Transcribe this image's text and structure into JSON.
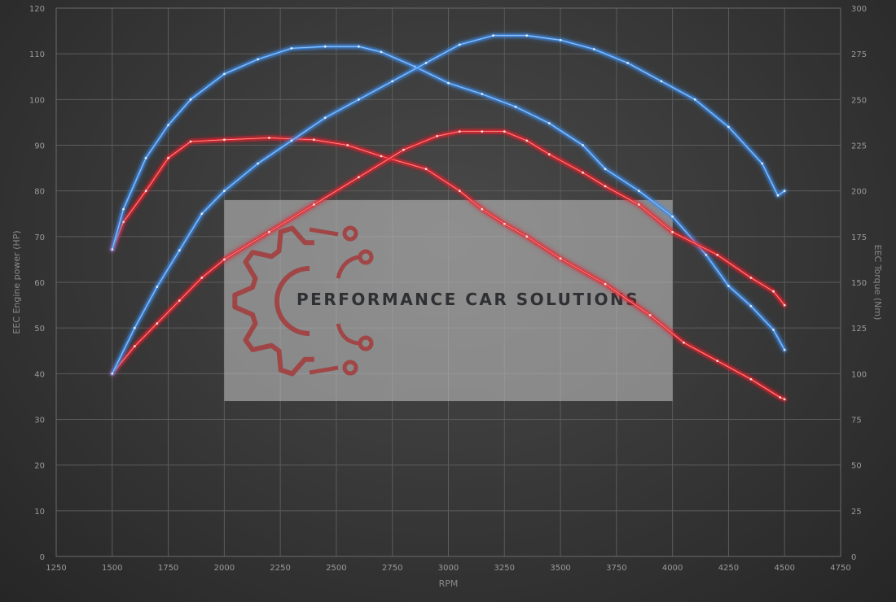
{
  "colors": {
    "stock": "#e8232c",
    "tuned": "#3f8de8",
    "watermark_gear": "#a33a3a",
    "watermark_box": "#c8c8c8"
  },
  "watermark": {
    "text": "PERFORMANCE CAR SOLUTIONS",
    "icon": "gear-circuit-logo-icon",
    "x_range": [
      2000,
      4000
    ],
    "y_range": [
      34,
      78
    ]
  },
  "chart_data": {
    "type": "line",
    "title": "",
    "xlabel": "RPM",
    "ylabel_left": "EEC Engine power (HP)",
    "ylabel_right": "EEC Torque (Nm)",
    "xlim": [
      1250,
      4750
    ],
    "ylim_left": [
      0,
      120
    ],
    "ylim_right": [
      0,
      300
    ],
    "x_ticks": [
      1250,
      1500,
      1750,
      2000,
      2250,
      2500,
      2750,
      3000,
      3250,
      3500,
      3750,
      4000,
      4250,
      4500,
      4750
    ],
    "y_ticks_left": [
      0,
      10,
      20,
      30,
      40,
      50,
      60,
      70,
      80,
      90,
      100,
      110,
      120
    ],
    "y_ticks_right": [
      0,
      25,
      50,
      75,
      100,
      125,
      150,
      175,
      200,
      225,
      250,
      275,
      300
    ],
    "grid": true,
    "legend": "none",
    "series": [
      {
        "axis": "right",
        "color": "#e8232c",
        "x": [
          1500,
          1550,
          1650,
          1750,
          1850,
          2000,
          2200,
          2400,
          2550,
          2700,
          2900,
          3050,
          3150,
          3250,
          3350,
          3500,
          3700,
          3900,
          4050,
          4200,
          4350,
          4480,
          4500
        ],
        "y": [
          168,
          183,
          200,
          218,
          227,
          228,
          229,
          228,
          225,
          219,
          212,
          200,
          190,
          182,
          175,
          163,
          149,
          132,
          117,
          107,
          97,
          87,
          86
        ]
      },
      {
        "axis": "right",
        "color": "#3f8de8",
        "x": [
          1500,
          1550,
          1650,
          1750,
          1850,
          2000,
          2150,
          2300,
          2450,
          2600,
          2700,
          2850,
          3000,
          3150,
          3300,
          3450,
          3600,
          3700,
          3850,
          4000,
          4150,
          4250,
          4350,
          4450,
          4500
        ],
        "y": [
          168,
          190,
          218,
          236,
          250,
          264,
          272,
          278,
          279,
          279,
          276,
          268,
          259,
          253,
          246,
          237,
          225,
          212,
          200,
          186,
          165,
          148,
          137,
          124,
          113
        ]
      },
      {
        "axis": "left",
        "color": "#e8232c",
        "x": [
          1500,
          1600,
          1700,
          1800,
          1900,
          2000,
          2200,
          2400,
          2600,
          2800,
          2950,
          3050,
          3150,
          3250,
          3350,
          3450,
          3600,
          3700,
          3850,
          4000,
          4200,
          4350,
          4450,
          4500
        ],
        "y": [
          40,
          46,
          51,
          56,
          61,
          65,
          71,
          77,
          83,
          89,
          92,
          93,
          93,
          93,
          91,
          88,
          84,
          81,
          77,
          71,
          66,
          61,
          58,
          55
        ]
      },
      {
        "axis": "left",
        "color": "#3f8de8",
        "x": [
          1500,
          1600,
          1700,
          1800,
          1900,
          2000,
          2150,
          2300,
          2450,
          2600,
          2750,
          2900,
          3050,
          3200,
          3350,
          3500,
          3650,
          3800,
          3950,
          4100,
          4250,
          4400,
          4470,
          4500
        ],
        "y": [
          40,
          50,
          59,
          67,
          75,
          80,
          86,
          91,
          96,
          100,
          104,
          108,
          112,
          114,
          114,
          113,
          111,
          108,
          104,
          100,
          94,
          86,
          79,
          80
        ]
      }
    ]
  }
}
